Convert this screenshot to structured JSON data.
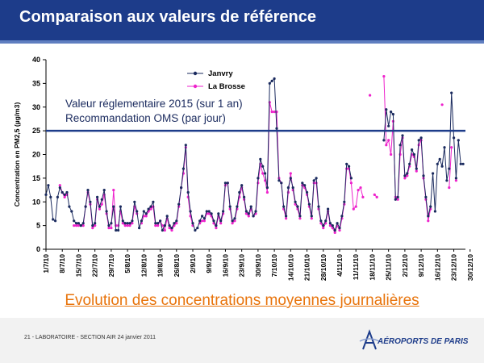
{
  "header": {
    "title": "Comparaison aux valeurs de référence"
  },
  "subtitle": "Evolution des concentrations moyennes journalières",
  "footer": {
    "text": "21 - LABORATOIRE - SECTION AIR 24 janvier 2011",
    "logo_text": "AÉROPORTS DE PARIS"
  },
  "colors": {
    "header": "#1d3c8a",
    "janvry": "#1a2a5e",
    "la_brosse": "#ee22cc",
    "reference": "#1d3c8a",
    "subtitle": "#e8740c"
  },
  "chart_data": {
    "type": "line",
    "ylabel": "Concentration en PM2,5 (µg/m3)",
    "ylim": [
      0,
      40
    ],
    "yticks": [
      0,
      5,
      10,
      15,
      20,
      25,
      30,
      35,
      40
    ],
    "x_start": "1/7/10",
    "x_end": "31/12/10",
    "xtick_labels": [
      "1/7/10",
      "8/7/10",
      "15/7/10",
      "22/7/10",
      "29/7/10",
      "5/8/10",
      "12/8/10",
      "19/8/10",
      "26/8/10",
      "2/9/10",
      "9/9/10",
      "16/9/10",
      "23/9/10",
      "30/9/10",
      "7/10/10",
      "14/10/10",
      "21/10/10",
      "28/10/10",
      "4/11/10",
      "11/11/10",
      "18/11/10",
      "25/11/10",
      "2/12/10",
      "9/12/10",
      "16/12/10",
      "23/12/10",
      "30/12/10"
    ],
    "reference": {
      "value": 25,
      "labels": [
        "Valeur réglementaire 2015 (sur 1 an)",
        "Recommandation OMS (par jour)"
      ]
    },
    "legend": {
      "placement": "top-left"
    },
    "series": [
      {
        "name": "Janvry",
        "values": [
          11.5,
          13.5,
          11,
          6.3,
          6,
          11,
          13,
          12,
          11.5,
          12,
          9,
          8,
          6,
          5.5,
          5.5,
          5,
          5.5,
          9,
          12.5,
          10,
          5,
          5.5,
          11,
          9,
          10.5,
          12.5,
          8,
          5,
          5.5,
          9,
          4,
          4,
          9,
          6,
          5.5,
          5.5,
          5.5,
          6,
          10,
          8,
          4.5,
          6,
          8,
          7.5,
          8.5,
          9,
          10,
          5.5,
          5.5,
          6,
          4,
          5,
          7,
          5,
          4.5,
          5.5,
          6,
          9.5,
          13,
          17,
          22,
          12,
          8,
          5.5,
          4,
          4.5,
          6,
          7,
          6.5,
          8,
          8,
          7.5,
          6,
          5,
          7.5,
          6,
          8,
          14,
          14,
          9,
          6,
          6.5,
          9,
          12,
          13.5,
          11,
          8,
          7.5,
          9,
          7,
          8,
          15,
          19,
          17.5,
          16,
          13,
          35,
          35.5,
          36,
          25.5,
          14.5,
          14,
          9,
          7,
          13,
          15,
          13,
          10,
          9,
          7,
          14,
          13.5,
          12,
          9.5,
          7,
          14.5,
          15,
          9,
          6,
          5,
          6,
          8.5,
          5.5,
          5,
          4,
          5.5,
          4.5,
          7,
          10,
          18,
          17.5,
          15,
          null,
          null,
          null,
          null,
          null,
          null,
          null,
          null,
          null,
          null,
          null,
          null,
          null,
          23,
          29.5,
          26,
          29,
          28.5,
          10.5,
          11,
          22,
          24,
          15.5,
          16,
          18,
          21,
          20,
          17,
          23,
          23.5,
          15.5,
          11,
          7,
          9,
          16,
          8,
          18,
          19,
          17.5,
          21.5,
          14.5,
          17,
          33,
          23.5,
          15,
          23,
          18,
          18,
          null
        ]
      },
      {
        "name": "La Brosse",
        "values": [
          null,
          null,
          null,
          null,
          null,
          null,
          13.5,
          12,
          11,
          11.5,
          null,
          null,
          5,
          5,
          5,
          5,
          5,
          9,
          12,
          9.5,
          4.5,
          5,
          10.5,
          8.5,
          9.5,
          11.5,
          7.5,
          4.5,
          4.5,
          12.5,
          5,
          5,
          8,
          5.5,
          5,
          5,
          5,
          5.5,
          9,
          7.5,
          null,
          5.5,
          7,
          7,
          8,
          8.5,
          9,
          5,
          5,
          6,
          5,
          4,
          6.5,
          4.5,
          4,
          5,
          5.5,
          9,
          13,
          16,
          21.5,
          11,
          7,
          5,
          null,
          null,
          5.5,
          6,
          6,
          7.5,
          7.5,
          7,
          5.5,
          4.5,
          7,
          5.5,
          7.5,
          13.5,
          14,
          8.5,
          5.5,
          6,
          8.5,
          11,
          13,
          10.5,
          7.5,
          7,
          8.5,
          7,
          7.5,
          14,
          18,
          16,
          14.5,
          12,
          31,
          29,
          29,
          29,
          15,
          14,
          8.5,
          6.5,
          12,
          16,
          12.5,
          9.5,
          8.5,
          6.5,
          13.5,
          13,
          11.5,
          9,
          6.5,
          14,
          14,
          8.5,
          5.5,
          4.5,
          5.5,
          8,
          5,
          4.5,
          3.5,
          5,
          4,
          6.5,
          9.5,
          17,
          17,
          14,
          8.5,
          9,
          12.5,
          13,
          11,
          null,
          null,
          32.5,
          null,
          11.5,
          11,
          null,
          null,
          36.5,
          22,
          23,
          20,
          27,
          11,
          10.5,
          20,
          23.5,
          15,
          15.5,
          17.5,
          20,
          19.5,
          16.5,
          22,
          23,
          15,
          10.5,
          6,
          8.5,
          null,
          null,
          null,
          null,
          30.5,
          null,
          null,
          13,
          21.5,
          null,
          14.5,
          null,
          null,
          null,
          null
        ]
      }
    ]
  }
}
